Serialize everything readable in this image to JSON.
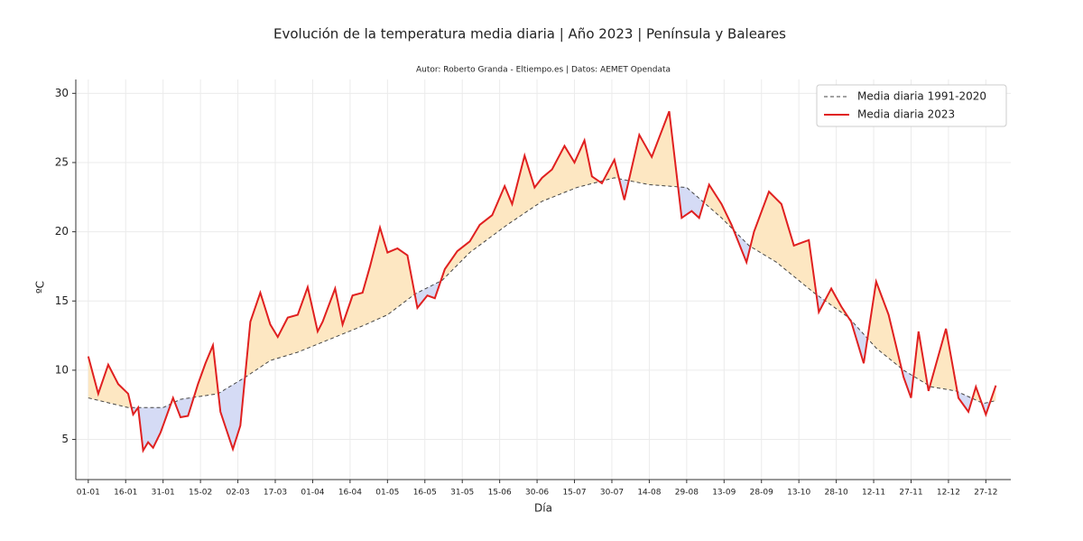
{
  "chart_data": {
    "type": "line",
    "title": "Evolución de la temperatura media diaria | Año 2023 | Península y Baleares",
    "subtitle": "Autor: Roberto Granda - Eltiempo.es | Datos: AEMET Opendata",
    "xlabel": "Día",
    "ylabel": "ºC",
    "xlim": [
      -5,
      370
    ],
    "ylim": [
      2.1,
      31
    ],
    "yticks": [
      5,
      10,
      15,
      20,
      25,
      30
    ],
    "xticks": [
      {
        "value": 0,
        "label": "01-01"
      },
      {
        "value": 15,
        "label": "16-01"
      },
      {
        "value": 30,
        "label": "31-01"
      },
      {
        "value": 45,
        "label": "15-02"
      },
      {
        "value": 60,
        "label": "02-03"
      },
      {
        "value": 75,
        "label": "17-03"
      },
      {
        "value": 90,
        "label": "01-04"
      },
      {
        "value": 105,
        "label": "16-04"
      },
      {
        "value": 120,
        "label": "01-05"
      },
      {
        "value": 135,
        "label": "16-05"
      },
      {
        "value": 150,
        "label": "31-05"
      },
      {
        "value": 165,
        "label": "15-06"
      },
      {
        "value": 180,
        "label": "30-06"
      },
      {
        "value": 195,
        "label": "15-07"
      },
      {
        "value": 210,
        "label": "30-07"
      },
      {
        "value": 225,
        "label": "14-08"
      },
      {
        "value": 240,
        "label": "29-08"
      },
      {
        "value": 255,
        "label": "13-09"
      },
      {
        "value": 270,
        "label": "28-09"
      },
      {
        "value": 285,
        "label": "13-10"
      },
      {
        "value": 300,
        "label": "28-10"
      },
      {
        "value": 315,
        "label": "12-11"
      },
      {
        "value": 330,
        "label": "27-11"
      },
      {
        "value": 345,
        "label": "12-12"
      },
      {
        "value": 360,
        "label": "27-12"
      }
    ],
    "grid": true,
    "legend": "upper right",
    "series": [
      {
        "name": "Media diaria 1991-2020",
        "color": "#444444",
        "dashed": true,
        "x": [
          0,
          16,
          30,
          37,
          52,
          63,
          73,
          84,
          95,
          110,
          120,
          131,
          142,
          153,
          168,
          182,
          196,
          211,
          225,
          240,
          254,
          265,
          276,
          291,
          305,
          316,
          327,
          338,
          348,
          359,
          364
        ],
        "values": [
          8,
          7.3,
          7.3,
          7.9,
          8.3,
          9.5,
          10.7,
          11.3,
          12.1,
          13.2,
          14,
          15.5,
          16.5,
          18.5,
          20.5,
          22.2,
          23.2,
          23.9,
          23.4,
          23.2,
          21,
          19,
          17.8,
          15.6,
          13.8,
          11.6,
          10,
          8.8,
          8.5,
          7.6,
          7.8
        ]
      },
      {
        "name": "Media diaria 2023",
        "color": "#e02020",
        "dashed": false,
        "x": [
          0,
          4,
          8,
          12,
          16,
          18,
          20,
          22,
          24,
          26,
          29,
          34,
          37,
          40,
          44,
          47,
          50,
          53,
          58,
          61,
          65,
          69,
          73,
          76,
          80,
          84,
          88,
          92,
          94,
          99,
          102,
          106,
          110,
          113,
          117,
          120,
          124,
          128,
          132,
          136,
          139,
          143,
          148,
          153,
          157,
          162,
          167,
          170,
          175,
          179,
          182,
          186,
          191,
          195,
          199,
          202,
          206,
          211,
          215,
          221,
          226,
          233,
          238,
          242,
          245,
          249,
          254,
          258,
          264,
          267,
          273,
          278,
          283,
          289,
          293,
          298,
          302,
          306,
          311,
          316,
          321,
          327,
          330,
          333,
          337,
          344,
          349,
          353,
          356,
          360,
          364
        ],
        "values": [
          11,
          8.3,
          10.4,
          9,
          8.3,
          6.8,
          7.3,
          4.2,
          4.8,
          4.4,
          5.5,
          8,
          6.6,
          6.7,
          9,
          10.5,
          11.8,
          7,
          4.3,
          6,
          13.5,
          15.6,
          13.3,
          12.4,
          13.8,
          14,
          16,
          12.8,
          13.5,
          15.9,
          13.3,
          15.4,
          15.6,
          17.5,
          20.3,
          18.5,
          18.8,
          18.3,
          14.5,
          15.4,
          15.2,
          17.3,
          18.6,
          19.3,
          20.5,
          21.2,
          23.3,
          22,
          25.5,
          23.2,
          23.9,
          24.5,
          26.2,
          25,
          26.6,
          24,
          23.5,
          25.2,
          22.3,
          27,
          25.4,
          28.7,
          21,
          21.5,
          21,
          23.4,
          22,
          20.5,
          17.8,
          20,
          22.9,
          22,
          19,
          19.4,
          14.2,
          15.9,
          14.6,
          13.5,
          10.5,
          16.4,
          14,
          9.5,
          8,
          12.8,
          8.5,
          13,
          8,
          7,
          8.8,
          6.8,
          8.9
        ]
      }
    ]
  }
}
